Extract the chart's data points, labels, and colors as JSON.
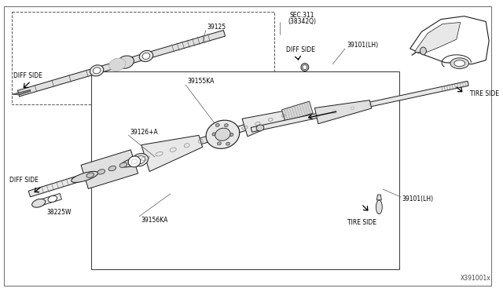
{
  "bg_color": "#ffffff",
  "border_color": "#888888",
  "line_color": "#1a1a1a",
  "part_number_bottom": "X391001x",
  "labels": {
    "diff_side_upper": "DIFF SIDE",
    "diff_side_lower": "DIFF SIDE",
    "tire_side_upper": "TIRE SIDE",
    "tire_side_lower": "TIRE SIDE",
    "sec311": "SEC.311",
    "sec311b": "(38342Q)",
    "p39125": "39125",
    "p39101_lh_upper": "39101(LH)",
    "p39155ka": "39155KA",
    "p39126a": "39126+A",
    "p38225w": "38225W",
    "p39156ka": "39156KA",
    "p39101_lh_lower": "39101(LH)"
  }
}
